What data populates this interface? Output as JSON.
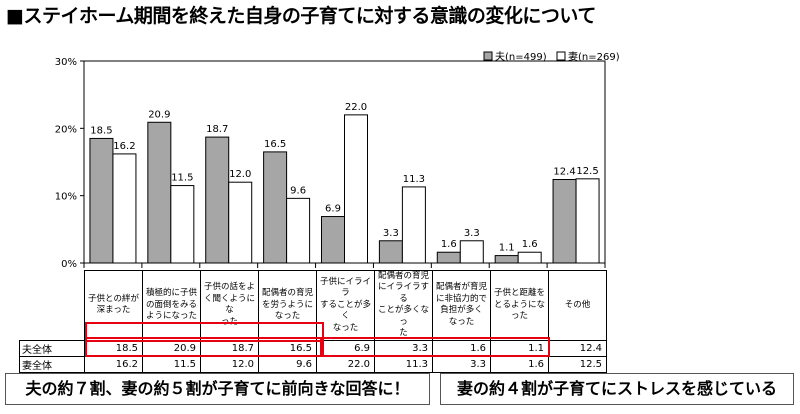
{
  "title": "■ステイホーム期間を終えた自身の子育てに対する意識の変化について",
  "chart_data": {
    "type": "bar",
    "categories": [
      "子供との絆が深まった",
      "積極的に子供の面倒をみるようになった",
      "子供の話をよく聞くようになった",
      "配偶者の育児を労うようになった",
      "子供にイライラすることが多くなった",
      "配偶者の育児にイライラすることが多くなった",
      "配偶者が育児に非協力的で負担が多くなった",
      "子供と距離をとるようになった",
      "その他"
    ],
    "series": [
      {
        "name": "夫(n=499)",
        "color": "#a6a6a6",
        "values": [
          18.5,
          20.9,
          18.7,
          16.5,
          6.9,
          3.3,
          1.6,
          1.1,
          12.4
        ]
      },
      {
        "name": "妻(n=269)",
        "color": "#ffffff",
        "values": [
          16.2,
          11.5,
          12.0,
          9.6,
          22.0,
          11.3,
          3.3,
          1.6,
          12.5
        ]
      }
    ],
    "yticks": [
      "0%",
      "10%",
      "20%",
      "30%"
    ],
    "ylim": [
      0,
      30
    ],
    "legend": "top-right"
  },
  "categories_display": [
    [
      "子供との絆が",
      "深まった"
    ],
    [
      "積極的に子供",
      "の面倒をみる",
      "ようになった"
    ],
    [
      "子供の話をよ",
      "く聞くようにな",
      "った"
    ],
    [
      "配偶者の育児",
      "を労うように",
      "なった"
    ],
    [
      "子供にイライラ",
      "することが多く",
      "なった"
    ],
    [
      "配偶者の育児",
      "にイライラする",
      "ことが多くなっ",
      "た"
    ],
    [
      "配偶者が育児",
      "に非協力的で",
      "負担が多く",
      "なった"
    ],
    [
      "子供と距離を",
      "とるようになった"
    ],
    [
      "その他"
    ]
  ],
  "table": {
    "rows": [
      {
        "label": "夫全体",
        "values": [
          "18.5",
          "20.9",
          "18.7",
          "16.5",
          "6.9",
          "3.3",
          "1.6",
          "1.1",
          "12.4"
        ]
      },
      {
        "label": "妻全体",
        "values": [
          "16.2",
          "11.5",
          "12.0",
          "9.6",
          "22.0",
          "11.3",
          "3.3",
          "1.6",
          "12.5"
        ]
      }
    ]
  },
  "callouts": {
    "left": "夫の約７割、妻の約５割が子育てに前向きな回答に！",
    "right": "妻の約４割が子育てにストレスを感じている"
  }
}
